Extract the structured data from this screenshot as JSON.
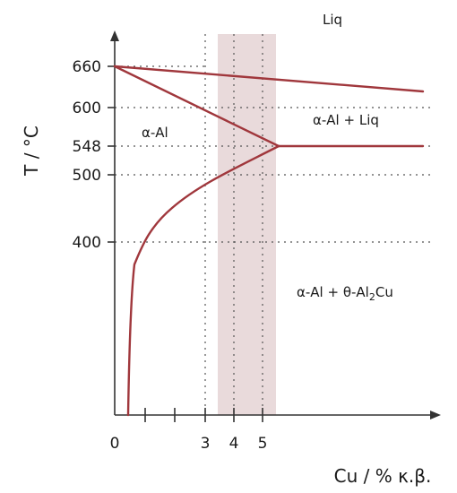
{
  "y_axis": {
    "title": "T / °C",
    "ticks": [
      {
        "value": 660,
        "label": "660"
      },
      {
        "value": 600,
        "label": "600"
      },
      {
        "value": 548,
        "label": "548"
      },
      {
        "value": 500,
        "label": "500"
      },
      {
        "value": 400,
        "label": "400"
      }
    ]
  },
  "x_axis": {
    "title": "Cu / % κ.β.",
    "labels": [
      {
        "value": 0,
        "label": "0"
      },
      {
        "value": 3,
        "label": "3"
      },
      {
        "value": 4,
        "label": "4"
      },
      {
        "value": 5,
        "label": "5"
      }
    ],
    "minor_ticks": [
      1,
      2
    ]
  },
  "regions": {
    "liquid": "Liq",
    "alpha": "α-Al",
    "alpha_liquid": "α-Al + Liq",
    "alpha_theta_main": "α-Al + θ-Al",
    "alpha_theta_sub": "2",
    "alpha_theta_tail": "Cu"
  },
  "highlight_band": {
    "from": 3.5,
    "to": 5.4,
    "color": "#e9dadb"
  },
  "colors": {
    "curve": "#a0373c"
  }
}
